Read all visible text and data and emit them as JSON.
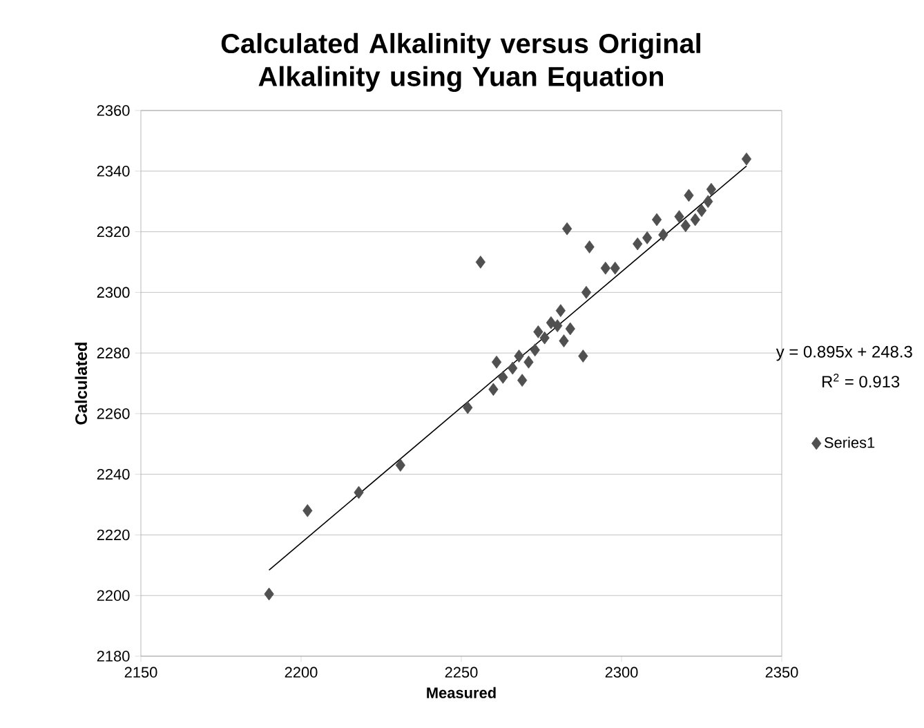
{
  "chart_data": {
    "type": "scatter",
    "title": "Calculated Alkalinity versus Original Alkalinity using Yuan Equation",
    "xlabel": "Measured",
    "ylabel": "Calculated",
    "xlim": [
      2150,
      2350
    ],
    "xticks": [
      2150,
      2200,
      2250,
      2300,
      2350
    ],
    "ylim": [
      2180,
      2360
    ],
    "yticks": [
      2180,
      2200,
      2220,
      2240,
      2260,
      2280,
      2300,
      2320,
      2340,
      2360
    ],
    "grid": "y",
    "legend": "right",
    "marker": "diamond",
    "annotations": [
      "y = 0.895x + 248.3",
      "R$^{2}$ = 0.913"
    ],
    "series": [
      {
        "name": "Series1",
        "color": "#505050",
        "x": [
          2190,
          2202,
          2218,
          2231,
          2252,
          2256,
          2260,
          2261,
          2263,
          2266,
          2268,
          2269,
          2271,
          2273,
          2274,
          2276,
          2278,
          2280,
          2281,
          2282,
          2283,
          2284,
          2288,
          2289,
          2290,
          2295,
          2298,
          2305,
          2308,
          2311,
          2313,
          2318,
          2320,
          2321,
          2323,
          2325,
          2327,
          2328,
          2339
        ],
        "values": [
          2200.5,
          2228,
          2234,
          2243,
          2262,
          2310,
          2268,
          2277,
          2272,
          2275,
          2279,
          2271,
          2277,
          2281,
          2287,
          2285,
          2290,
          2289,
          2294,
          2284,
          2321,
          2288,
          2279,
          2300,
          2315,
          2308,
          2308,
          2316,
          2318,
          2324,
          2319,
          2325,
          2322,
          2332,
          2324,
          2327,
          2330,
          2334,
          2344
        ]
      },
      {
        "type": "line",
        "color": "#000000",
        "marker": "none",
        "x": [
          2190,
          2339
        ],
        "values": [
          2208.4,
          2341.7
        ]
      }
    ]
  }
}
